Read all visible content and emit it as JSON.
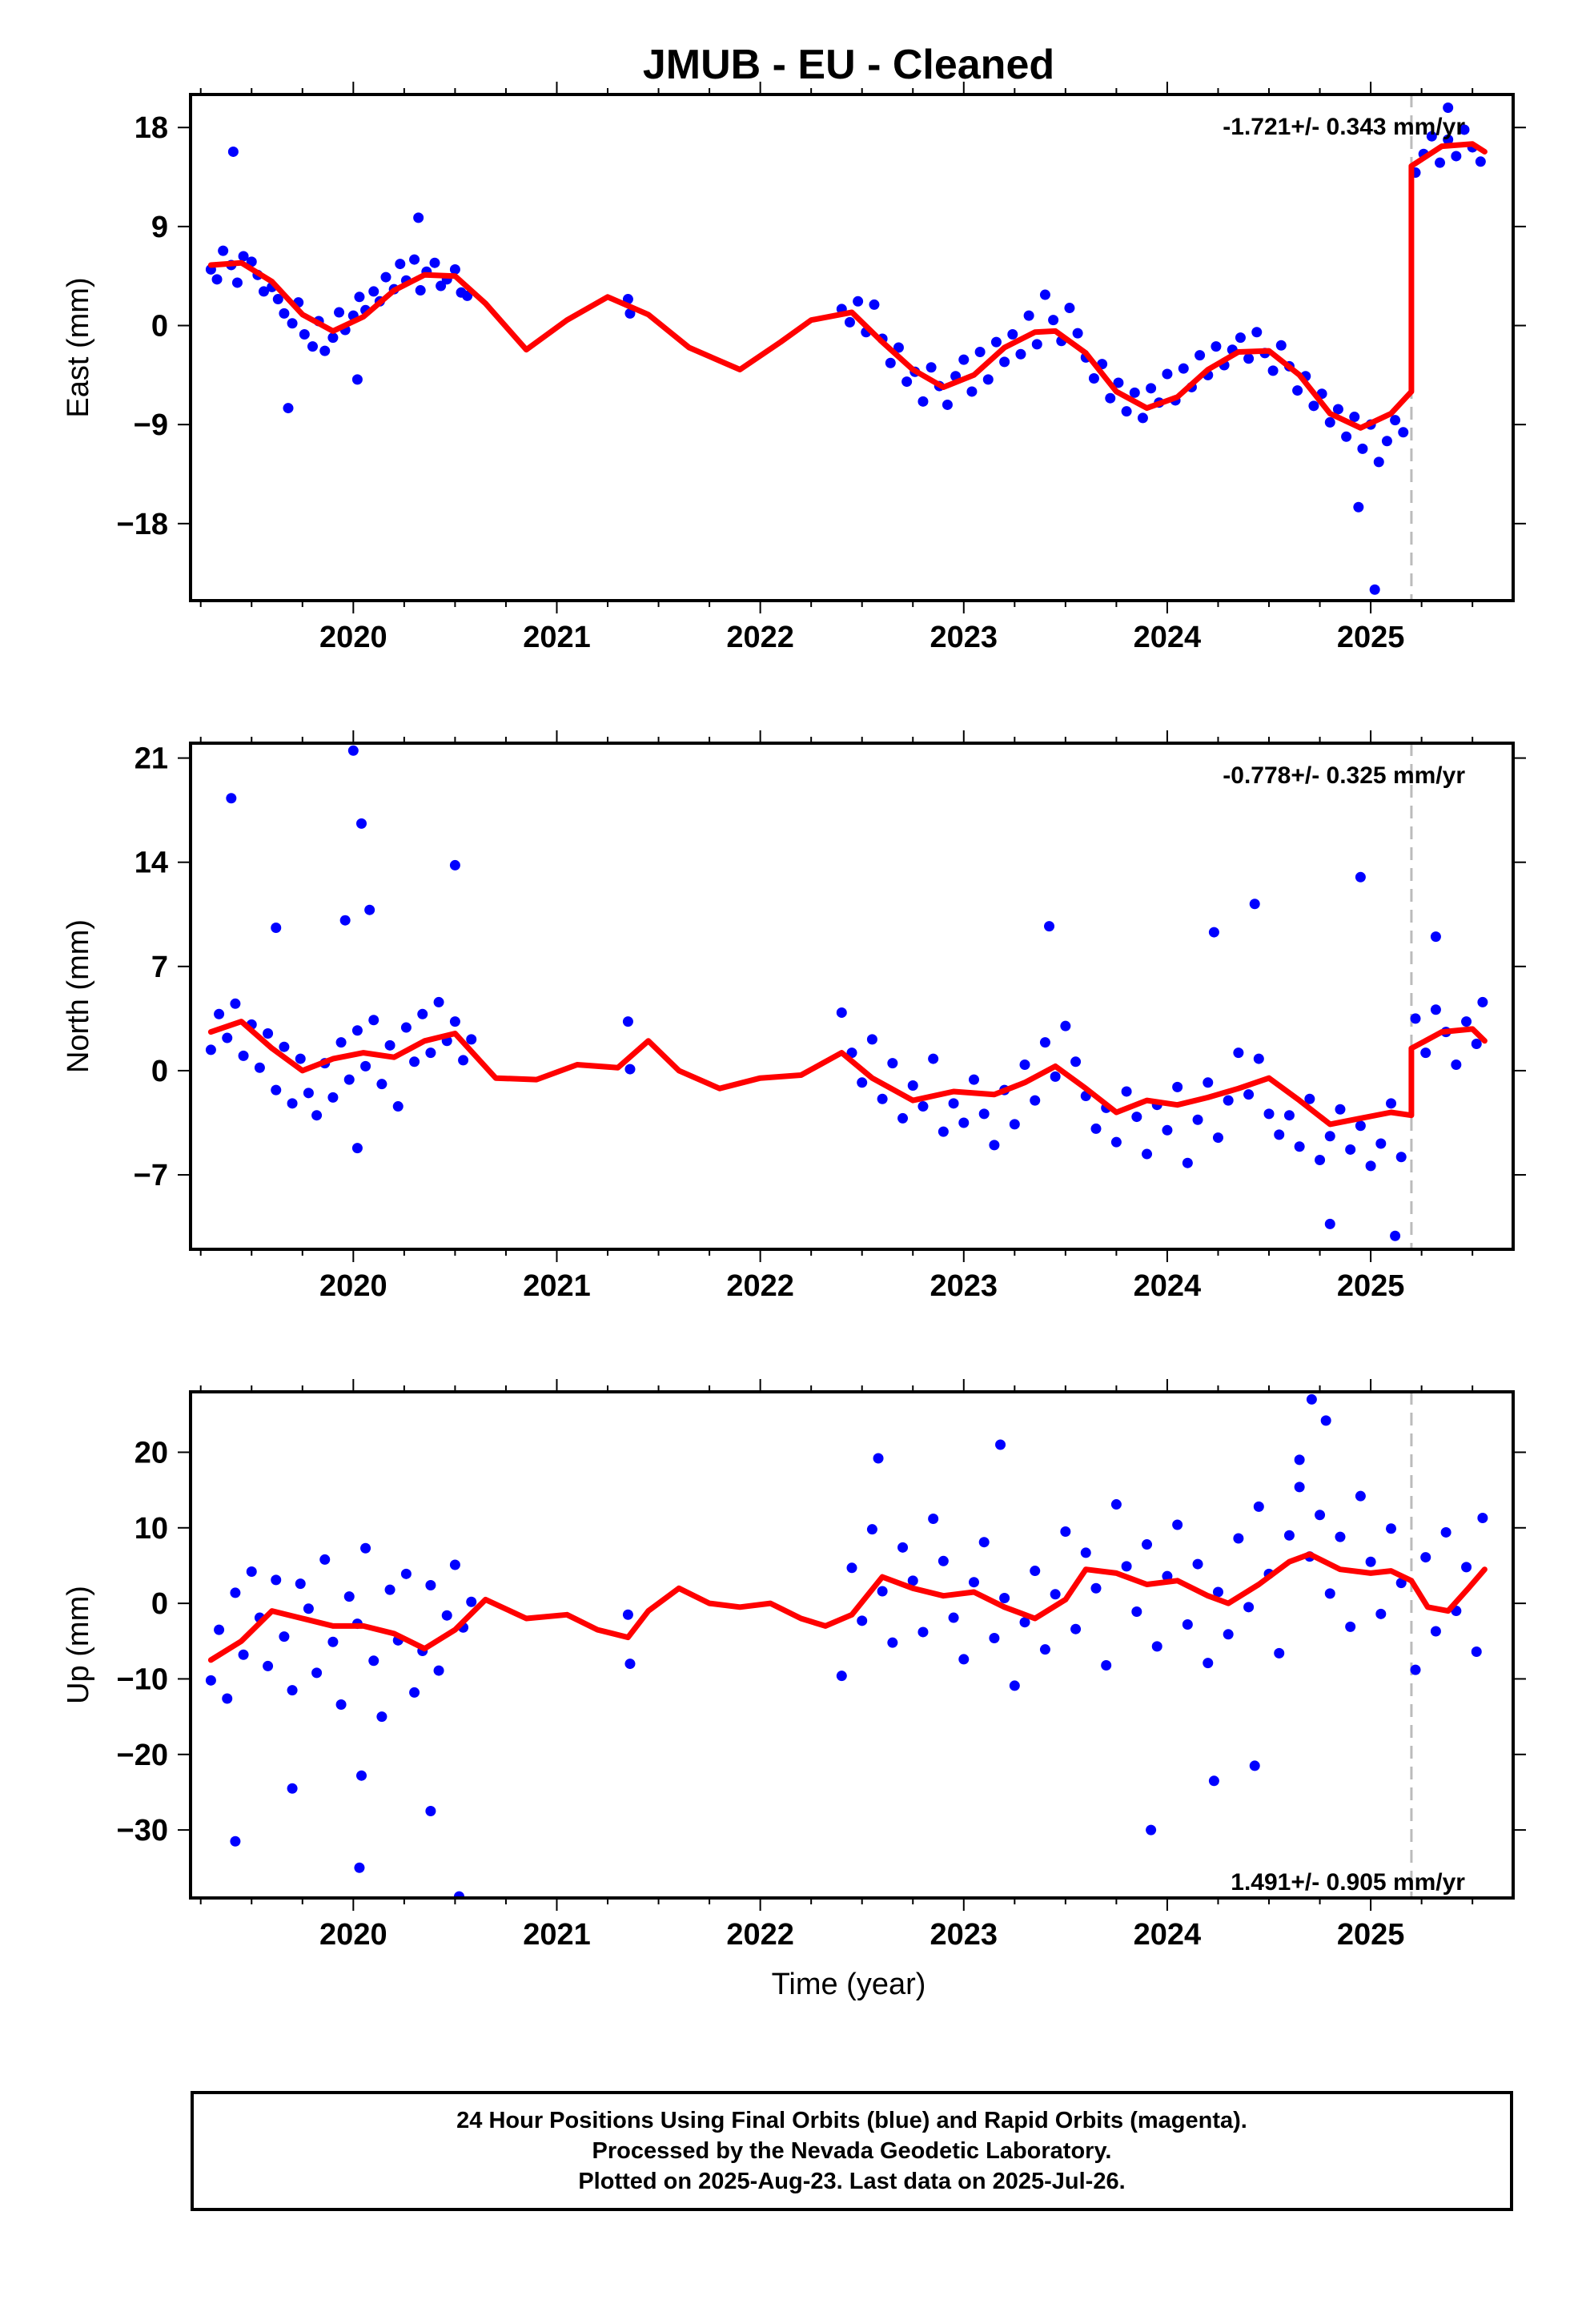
{
  "title": "JMUB  - EU - Cleaned",
  "xlabel": "Time (year)",
  "colors": {
    "points": "#0000ff",
    "model": "#ff0000",
    "step": "#bbbbbb",
    "frame": "#000000"
  },
  "caption": [
    "24 Hour Positions Using Final Orbits (blue) and Rapid Orbits (magenta).",
    "Processed by the Nevada Geodetic Laboratory.",
    "Plotted on 2025-Aug-23. Last data on 2025-Jul-26."
  ],
  "chart_data": [
    {
      "type": "scatter",
      "ylabel": "East (mm)",
      "rate": "-1.721+/- 0.343 mm/yr",
      "xlim": [
        2019.2,
        2025.7
      ],
      "ylim": [
        -25,
        21
      ],
      "xticks": [
        "2020",
        "2021",
        "2022",
        "2023",
        "2024",
        "2025"
      ],
      "yticks": [
        "18",
        "9",
        "0",
        "-9",
        "-18"
      ],
      "step_epoch": 2025.2,
      "model": {
        "x": [
          2019.3,
          2019.45,
          2019.6,
          2019.75,
          2019.9,
          2020.05,
          2020.2,
          2020.35,
          2020.5,
          2020.65,
          2020.85,
          2021.05,
          2021.25,
          2021.45,
          2021.65,
          2021.9,
          2022.1,
          2022.25,
          2022.45,
          2022.6,
          2022.75,
          2022.9,
          2023.05,
          2023.2,
          2023.35,
          2023.45,
          2023.6,
          2023.75,
          2023.9,
          2024.05,
          2024.2,
          2024.35,
          2024.5,
          2024.65,
          2024.8,
          2024.95,
          2025.1,
          2025.2,
          2025.2,
          2025.35,
          2025.5,
          2025.56
        ],
        "y": [
          5.5,
          5.7,
          4.0,
          1.0,
          -0.5,
          0.8,
          3.2,
          4.6,
          4.5,
          2.0,
          -2.2,
          0.5,
          2.6,
          1.0,
          -2.0,
          -4.0,
          -1.5,
          0.5,
          1.2,
          -1.5,
          -4.0,
          -5.6,
          -4.5,
          -2.0,
          -0.6,
          -0.5,
          -2.5,
          -6.0,
          -7.5,
          -6.5,
          -4.0,
          -2.4,
          -2.3,
          -4.5,
          -8.0,
          -9.3,
          -8.0,
          -6.0,
          14.5,
          16.3,
          16.5,
          15.8
        ]
      },
      "points": {
        "x": [
          2019.3,
          2019.33,
          2019.36,
          2019.4,
          2019.43,
          2019.46,
          2019.5,
          2019.53,
          2019.56,
          2019.6,
          2019.63,
          2019.66,
          2019.7,
          2019.73,
          2019.76,
          2019.8,
          2019.83,
          2019.86,
          2019.9,
          2019.93,
          2019.96,
          2020.0,
          2020.03,
          2020.06,
          2020.1,
          2020.13,
          2020.16,
          2020.2,
          2020.23,
          2020.26,
          2020.3,
          2020.33,
          2020.36,
          2020.4,
          2020.43,
          2020.46,
          2020.5,
          2020.53,
          2020.56,
          2019.41,
          2019.68,
          2020.02,
          2020.32,
          2021.35,
          2021.36,
          2022.4,
          2022.44,
          2022.48,
          2022.52,
          2022.56,
          2022.6,
          2022.64,
          2022.68,
          2022.72,
          2022.76,
          2022.8,
          2022.84,
          2022.88,
          2022.92,
          2022.96,
          2023.0,
          2023.04,
          2023.08,
          2023.12,
          2023.16,
          2023.2,
          2023.24,
          2023.28,
          2023.32,
          2023.36,
          2023.4,
          2023.44,
          2023.48,
          2023.52,
          2023.56,
          2023.6,
          2023.64,
          2023.68,
          2023.72,
          2023.76,
          2023.8,
          2023.84,
          2023.88,
          2023.92,
          2023.96,
          2024.0,
          2024.04,
          2024.08,
          2024.12,
          2024.16,
          2024.2,
          2024.24,
          2024.28,
          2024.32,
          2024.36,
          2024.4,
          2024.44,
          2024.48,
          2024.52,
          2024.56,
          2024.6,
          2024.64,
          2024.68,
          2024.72,
          2024.76,
          2024.8,
          2024.84,
          2024.88,
          2024.92,
          2024.96,
          2025.0,
          2025.04,
          2025.08,
          2025.12,
          2025.16,
          2024.94,
          2025.02,
          2025.22,
          2025.26,
          2025.3,
          2025.34,
          2025.38,
          2025.42,
          2025.46,
          2025.5,
          2025.54,
          2025.38
        ],
        "y": [
          5.1,
          4.2,
          6.8,
          5.5,
          3.9,
          6.3,
          5.8,
          4.6,
          3.1,
          3.5,
          2.4,
          1.1,
          0.2,
          2.1,
          -0.8,
          -1.9,
          0.4,
          -2.3,
          -1.1,
          1.2,
          -0.4,
          0.9,
          2.6,
          1.4,
          3.1,
          2.2,
          4.4,
          3.3,
          5.6,
          4.1,
          6.0,
          3.2,
          4.9,
          5.7,
          3.6,
          4.2,
          5.1,
          3.0,
          2.7,
          15.8,
          -7.5,
          -4.9,
          9.8,
          2.4,
          1.1,
          1.5,
          0.3,
          2.2,
          -0.6,
          1.9,
          -1.2,
          -3.4,
          -2.0,
          -5.1,
          -4.2,
          -6.9,
          -3.8,
          -5.5,
          -7.2,
          -4.6,
          -3.1,
          -6.0,
          -2.4,
          -4.9,
          -1.5,
          -3.3,
          -0.8,
          -2.6,
          0.9,
          -1.7,
          2.8,
          0.5,
          -1.4,
          1.6,
          -0.7,
          -2.9,
          -4.8,
          -3.5,
          -6.6,
          -5.2,
          -7.8,
          -6.1,
          -8.4,
          -5.7,
          -7.0,
          -4.4,
          -6.8,
          -3.9,
          -5.6,
          -2.7,
          -4.5,
          -1.9,
          -3.6,
          -2.2,
          -1.1,
          -3.0,
          -0.6,
          -2.5,
          -4.1,
          -1.8,
          -3.7,
          -5.9,
          -4.6,
          -7.3,
          -6.2,
          -8.8,
          -7.6,
          -10.1,
          -8.3,
          -11.2,
          -9.0,
          -12.4,
          -10.5,
          -8.6,
          -9.7,
          -16.5,
          -24.0,
          13.9,
          15.6,
          17.2,
          14.8,
          16.9,
          15.4,
          17.8,
          16.2,
          14.9,
          19.8
        ]
      }
    },
    {
      "type": "scatter",
      "ylabel": "North (mm)",
      "rate": "-0.778+/- 0.325 mm/yr",
      "xlim": [
        2019.2,
        2025.7
      ],
      "ylim": [
        -12,
        22
      ],
      "xticks": [
        "2020",
        "2021",
        "2022",
        "2023",
        "2024",
        "2025"
      ],
      "yticks": [
        "21",
        "14",
        "7",
        "0",
        "-7"
      ],
      "step_epoch": 2025.2,
      "model": {
        "x": [
          2019.3,
          2019.45,
          2019.6,
          2019.75,
          2019.9,
          2020.05,
          2020.2,
          2020.35,
          2020.5,
          2020.7,
          2020.9,
          2021.1,
          2021.3,
          2021.45,
          2021.6,
          2021.8,
          2022.0,
          2022.2,
          2022.4,
          2022.55,
          2022.75,
          2022.95,
          2023.15,
          2023.3,
          2023.45,
          2023.6,
          2023.75,
          2023.9,
          2024.05,
          2024.2,
          2024.35,
          2024.5,
          2024.65,
          2024.8,
          2024.95,
          2025.1,
          2025.2,
          2025.2,
          2025.35,
          2025.5,
          2025.56
        ],
        "y": [
          2.6,
          3.3,
          1.5,
          0.0,
          0.8,
          1.2,
          0.9,
          2.0,
          2.5,
          -0.5,
          -0.6,
          0.4,
          0.2,
          2.0,
          0.0,
          -1.2,
          -0.5,
          -0.3,
          1.2,
          -0.5,
          -2.0,
          -1.4,
          -1.6,
          -0.8,
          0.3,
          -1.2,
          -2.8,
          -2.0,
          -2.3,
          -1.8,
          -1.2,
          -0.5,
          -2.0,
          -3.6,
          -3.2,
          -2.8,
          -3.0,
          1.5,
          2.6,
          2.8,
          2.0
        ]
      },
      "points": {
        "x": [
          2019.3,
          2019.34,
          2019.38,
          2019.42,
          2019.46,
          2019.5,
          2019.54,
          2019.58,
          2019.62,
          2019.66,
          2019.7,
          2019.74,
          2019.78,
          2019.82,
          2019.86,
          2019.9,
          2019.94,
          2019.98,
          2020.02,
          2020.06,
          2020.1,
          2020.14,
          2020.18,
          2020.22,
          2020.26,
          2020.3,
          2020.34,
          2020.38,
          2020.42,
          2020.46,
          2020.5,
          2020.54,
          2020.58,
          2019.4,
          2019.62,
          2019.96,
          2020.0,
          2020.04,
          2020.08,
          2020.5,
          2020.02,
          2021.35,
          2021.36,
          2022.4,
          2022.45,
          2022.5,
          2022.55,
          2022.6,
          2022.65,
          2022.7,
          2022.75,
          2022.8,
          2022.85,
          2022.9,
          2022.95,
          2023.0,
          2023.05,
          2023.1,
          2023.15,
          2023.2,
          2023.25,
          2023.3,
          2023.35,
          2023.4,
          2023.45,
          2023.5,
          2023.55,
          2023.6,
          2023.65,
          2023.7,
          2023.75,
          2023.8,
          2023.85,
          2023.9,
          2023.95,
          2024.0,
          2024.05,
          2024.1,
          2024.15,
          2024.2,
          2024.25,
          2024.3,
          2024.35,
          2024.4,
          2024.45,
          2024.5,
          2024.55,
          2024.6,
          2024.65,
          2024.7,
          2024.75,
          2024.8,
          2024.85,
          2024.9,
          2024.95,
          2025.0,
          2025.05,
          2025.1,
          2025.15,
          2023.42,
          2024.23,
          2024.43,
          2024.95,
          2024.8,
          2025.12,
          2025.22,
          2025.27,
          2025.32,
          2025.37,
          2025.42,
          2025.47,
          2025.52,
          2025.55,
          2025.32
        ],
        "y": [
          1.4,
          3.8,
          2.2,
          4.5,
          1.0,
          3.1,
          0.2,
          2.5,
          -1.3,
          1.6,
          -2.2,
          0.8,
          -1.5,
          -3.0,
          0.5,
          -1.8,
          1.9,
          -0.6,
          2.7,
          0.3,
          3.4,
          -0.9,
          1.7,
          -2.4,
          2.9,
          0.6,
          3.8,
          1.2,
          4.6,
          2.0,
          3.3,
          0.7,
          2.1,
          18.3,
          9.6,
          10.1,
          21.5,
          16.6,
          10.8,
          13.8,
          -5.2,
          3.3,
          0.1,
          3.9,
          1.2,
          -0.8,
          2.1,
          -1.9,
          0.5,
          -3.2,
          -1.0,
          -2.4,
          0.8,
          -4.1,
          -2.2,
          -3.5,
          -0.6,
          -2.9,
          -5.0,
          -1.3,
          -3.6,
          0.4,
          -2.0,
          1.9,
          -0.4,
          3.0,
          0.6,
          -1.7,
          -3.9,
          -2.5,
          -4.8,
          -1.4,
          -3.1,
          -5.6,
          -2.3,
          -4.0,
          -1.1,
          -6.2,
          -3.3,
          -0.8,
          -4.5,
          -2.0,
          1.2,
          -1.6,
          0.8,
          -2.9,
          -4.3,
          -3.0,
          -5.1,
          -1.9,
          -6.0,
          -4.4,
          -2.6,
          -5.3,
          -3.7,
          -6.4,
          -4.9,
          -2.2,
          -5.8,
          9.7,
          9.3,
          11.2,
          13.0,
          -10.3,
          -11.1,
          3.5,
          1.2,
          4.1,
          2.6,
          0.4,
          3.3,
          1.8,
          4.6,
          9.0
        ]
      }
    },
    {
      "type": "scatter",
      "ylabel": "Up (mm)",
      "rate": "1.491+/- 0.905 mm/yr",
      "xlim": [
        2019.2,
        2025.7
      ],
      "ylim": [
        -39,
        28
      ],
      "xticks": [
        "2020",
        "2021",
        "2022",
        "2023",
        "2024",
        "2025"
      ],
      "yticks": [
        "20",
        "10",
        "0",
        "-10",
        "-20",
        "-30"
      ],
      "step_epoch": 2025.2,
      "model": {
        "x": [
          2019.3,
          2019.45,
          2019.6,
          2019.75,
          2019.9,
          2020.05,
          2020.2,
          2020.35,
          2020.5,
          2020.65,
          2020.85,
          2021.05,
          2021.2,
          2021.35,
          2021.45,
          2021.6,
          2021.75,
          2021.9,
          2022.05,
          2022.2,
          2022.32,
          2022.45,
          2022.6,
          2022.75,
          2022.9,
          2023.05,
          2023.2,
          2023.35,
          2023.5,
          2023.6,
          2023.75,
          2023.9,
          2024.05,
          2024.2,
          2024.3,
          2024.45,
          2024.6,
          2024.7,
          2024.85,
          2025.0,
          2025.1,
          2025.2,
          2025.28,
          2025.38,
          2025.48,
          2025.56
        ],
        "y": [
          -7.5,
          -5.0,
          -1.0,
          -2.0,
          -3.0,
          -3.0,
          -4.0,
          -6.0,
          -3.5,
          0.5,
          -2.0,
          -1.5,
          -3.5,
          -4.5,
          -1.0,
          2.0,
          0.0,
          -0.5,
          0.0,
          -2.0,
          -3.0,
          -1.5,
          3.5,
          2.0,
          1.0,
          1.5,
          -0.5,
          -2.0,
          0.5,
          4.5,
          4.0,
          2.5,
          3.0,
          1.0,
          0.0,
          2.5,
          5.5,
          6.5,
          4.5,
          4.0,
          4.3,
          3.0,
          -0.5,
          -1.0,
          2.0,
          4.5
        ]
      },
      "points": {
        "x": [
          2019.3,
          2019.34,
          2019.38,
          2019.42,
          2019.46,
          2019.5,
          2019.54,
          2019.58,
          2019.62,
          2019.66,
          2019.7,
          2019.74,
          2019.78,
          2019.82,
          2019.86,
          2019.9,
          2019.94,
          2019.98,
          2020.02,
          2020.06,
          2020.1,
          2020.14,
          2020.18,
          2020.22,
          2020.26,
          2020.3,
          2020.34,
          2020.38,
          2020.42,
          2020.46,
          2020.5,
          2020.54,
          2020.58,
          2019.42,
          2019.7,
          2020.03,
          2020.04,
          2020.38,
          2020.52,
          2021.35,
          2021.36,
          2022.4,
          2022.45,
          2022.5,
          2022.55,
          2022.6,
          2022.65,
          2022.7,
          2022.75,
          2022.8,
          2022.85,
          2022.9,
          2022.95,
          2023.0,
          2023.05,
          2023.1,
          2023.15,
          2023.2,
          2023.25,
          2023.3,
          2023.35,
          2023.4,
          2023.45,
          2023.5,
          2023.55,
          2023.6,
          2023.65,
          2023.7,
          2023.75,
          2023.8,
          2023.85,
          2023.9,
          2023.95,
          2024.0,
          2024.05,
          2024.1,
          2024.15,
          2024.2,
          2024.25,
          2024.3,
          2024.35,
          2024.4,
          2024.45,
          2024.5,
          2024.55,
          2024.6,
          2024.65,
          2024.7,
          2024.75,
          2024.8,
          2024.85,
          2024.9,
          2024.95,
          2025.0,
          2025.05,
          2025.1,
          2025.15,
          2024.65,
          2024.71,
          2024.78,
          2023.92,
          2024.23,
          2024.43,
          2025.22,
          2025.27,
          2025.32,
          2025.37,
          2025.42,
          2025.47,
          2025.52,
          2025.55,
          2022.58,
          2023.18
        ],
        "y": [
          -10.2,
          -3.5,
          -12.6,
          1.4,
          -6.8,
          4.2,
          -1.9,
          -8.3,
          3.1,
          -4.4,
          -11.5,
          2.6,
          -0.7,
          -9.2,
          5.8,
          -5.1,
          -13.4,
          0.9,
          -2.7,
          7.3,
          -7.6,
          -15.0,
          1.8,
          -4.9,
          3.9,
          -11.8,
          -6.3,
          2.4,
          -8.9,
          -1.6,
          5.1,
          -3.2,
          0.2,
          -31.5,
          -24.5,
          -35.0,
          -22.8,
          -27.5,
          -38.8,
          -1.5,
          -8.0,
          -9.6,
          4.7,
          -2.3,
          9.8,
          1.6,
          -5.2,
          7.4,
          3.0,
          -3.8,
          11.2,
          5.6,
          -1.9,
          -7.4,
          2.8,
          8.1,
          -4.6,
          0.7,
          -10.9,
          -2.5,
          4.3,
          -6.1,
          1.2,
          9.5,
          -3.4,
          6.7,
          2.0,
          -8.2,
          13.1,
          4.9,
          -1.1,
          7.8,
          -5.7,
          3.6,
          10.4,
          -2.8,
          5.2,
          -7.9,
          1.5,
          -4.1,
          8.6,
          -0.5,
          12.8,
          3.9,
          -6.6,
          9.0,
          15.4,
          6.2,
          11.7,
          1.3,
          8.8,
          -3.1,
          14.2,
          5.5,
          -1.4,
          9.9,
          2.7,
          19.0,
          27.0,
          24.2,
          -30.0,
          -23.5,
          -21.5,
          -8.8,
          6.1,
          -3.7,
          9.4,
          -1.0,
          4.8,
          -6.4,
          11.3,
          19.2,
          21.0
        ]
      }
    }
  ]
}
